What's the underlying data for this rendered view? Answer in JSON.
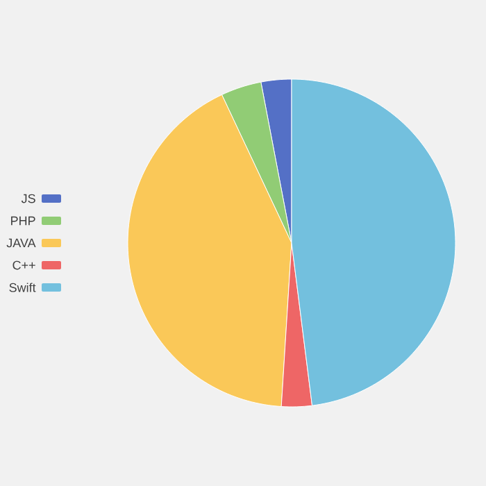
{
  "chart_data": {
    "type": "pie",
    "categories": [
      "JS",
      "PHP",
      "JAVA",
      "C++",
      "Swift"
    ],
    "values": [
      3,
      4,
      42,
      3,
      48
    ],
    "colors": [
      "#5470c6",
      "#91cc75",
      "#fac858",
      "#ee6666",
      "#73c0de"
    ],
    "legend": "left"
  }
}
